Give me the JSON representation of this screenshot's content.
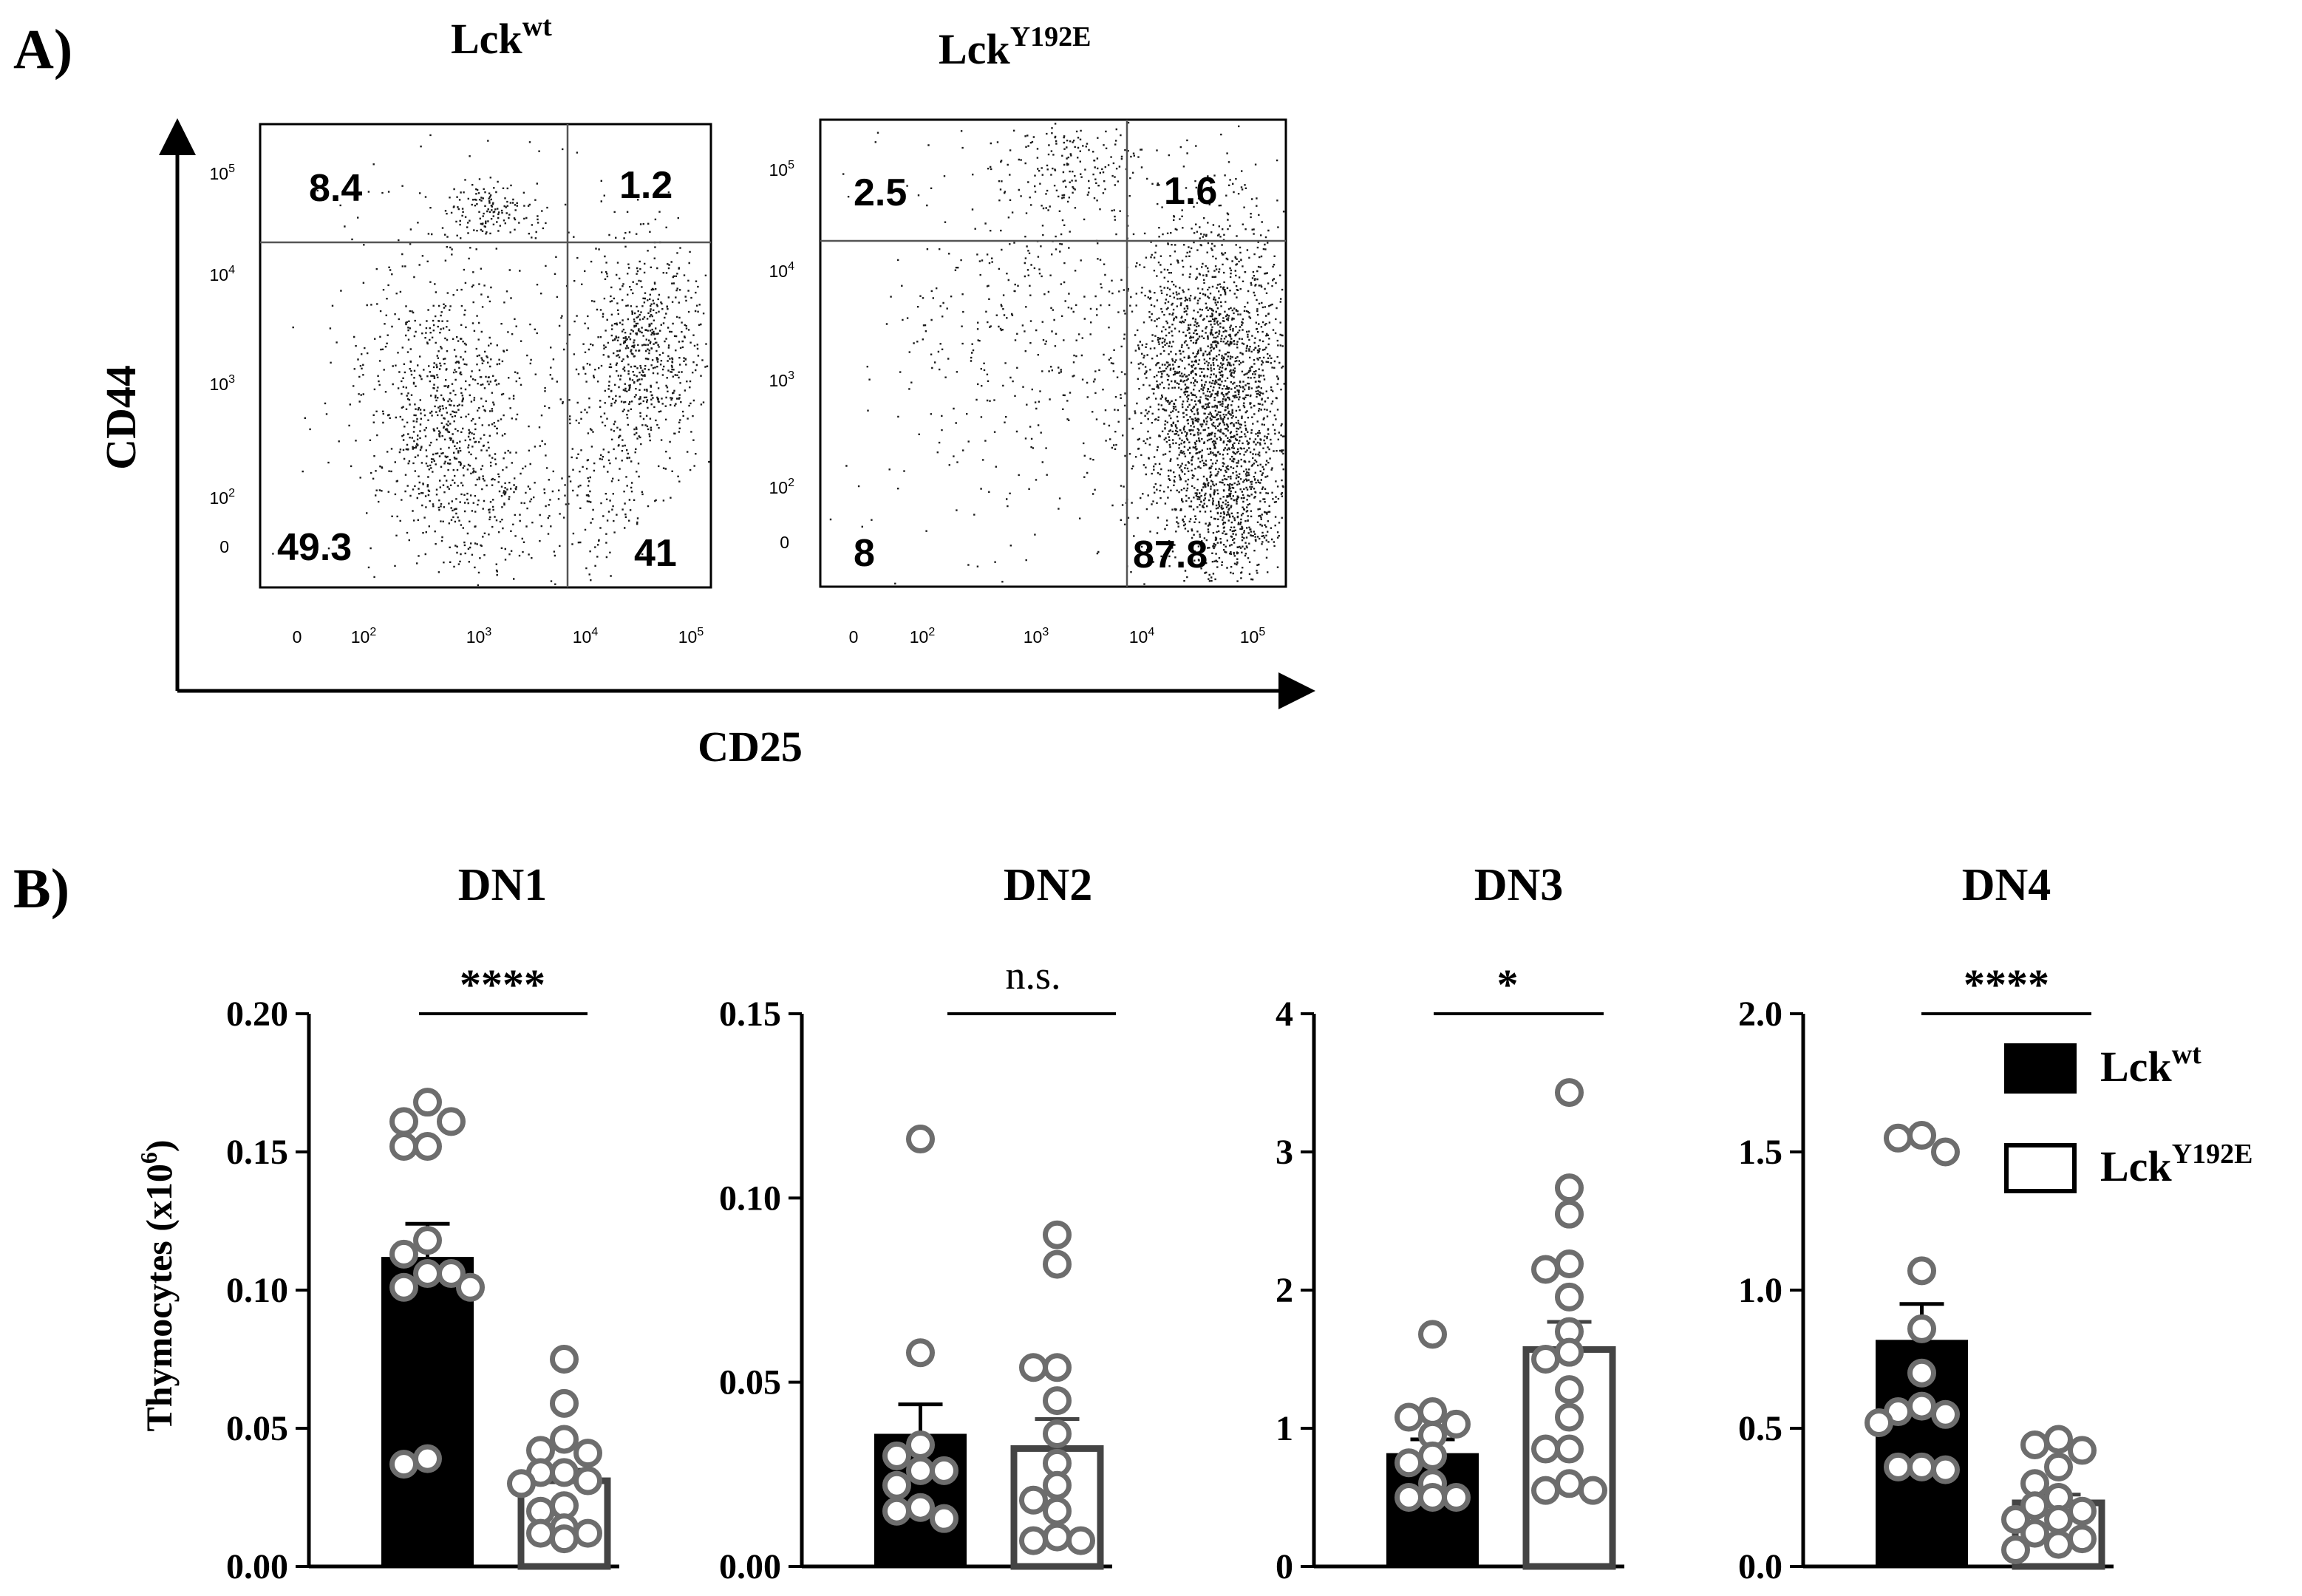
{
  "panel_a": {
    "label": "A)",
    "y_axis_label": "CD44",
    "x_axis_label": "CD25",
    "plots": [
      {
        "title_base": "Lck",
        "title_sup": "wt",
        "quadrants": {
          "top_left": "8.4",
          "top_right": "1.2",
          "bottom_left": "49.3",
          "bottom_right": "41"
        }
      },
      {
        "title_base": "Lck",
        "title_sup": "Y192E",
        "quadrants": {
          "top_left": "2.5",
          "top_right": "1.6",
          "bottom_left": "8",
          "bottom_right": "87.8"
        }
      }
    ],
    "y_ticks": [
      {
        "base": "10",
        "exp": "5"
      },
      {
        "base": "10",
        "exp": "4"
      },
      {
        "base": "10",
        "exp": "3"
      },
      {
        "base": "10",
        "exp": "2"
      },
      {
        "base": "0",
        "exp": ""
      }
    ],
    "x_ticks": [
      {
        "base": "0",
        "exp": ""
      },
      {
        "base": "10",
        "exp": "2"
      },
      {
        "base": "10",
        "exp": "3"
      },
      {
        "base": "10",
        "exp": "4"
      },
      {
        "base": "10",
        "exp": "5"
      }
    ]
  },
  "panel_b": {
    "label": "B)",
    "y_axis_label_base": "Thymocytes (x10",
    "y_axis_label_sup": "6",
    "y_axis_label_end": ")",
    "legend": [
      {
        "base": "Lck",
        "sup": "wt",
        "color": "#000000"
      },
      {
        "base": "Lck",
        "sup": "Y192E",
        "color": "#ffffff"
      }
    ]
  },
  "chart_data": [
    {
      "type": "bar",
      "title": "DN1",
      "significance": "****",
      "ylim": [
        0,
        0.2
      ],
      "yticks": [
        "0.00",
        "0.05",
        "0.10",
        "0.15",
        "0.20"
      ],
      "series": [
        {
          "name": "Lck wt",
          "mean": 0.112,
          "sem": 0.012,
          "points": [
            0.168,
            0.161,
            0.161,
            0.152,
            0.152,
            0.118,
            0.113,
            0.106,
            0.106,
            0.101,
            0.101,
            0.039,
            0.037
          ]
        },
        {
          "name": "Lck Y192E",
          "mean": 0.031,
          "sem": 0.004,
          "points": [
            0.075,
            0.059,
            0.046,
            0.042,
            0.041,
            0.034,
            0.034,
            0.031,
            0.03,
            0.022,
            0.02,
            0.014,
            0.012,
            0.012,
            0.01
          ]
        }
      ]
    },
    {
      "type": "bar",
      "title": "DN2",
      "significance": "n.s.",
      "ylim": [
        0,
        0.15
      ],
      "yticks": [
        "0.00",
        "0.05",
        "0.10",
        "0.15"
      ],
      "series": [
        {
          "name": "Lck wt",
          "mean": 0.036,
          "sem": 0.008,
          "points": [
            0.116,
            0.058,
            0.033,
            0.03,
            0.026,
            0.026,
            0.022,
            0.016,
            0.015,
            0.013
          ]
        },
        {
          "name": "Lck Y192E",
          "mean": 0.032,
          "sem": 0.008,
          "points": [
            0.09,
            0.082,
            0.054,
            0.054,
            0.045,
            0.036,
            0.028,
            0.022,
            0.018,
            0.015,
            0.008,
            0.007,
            0.007
          ]
        }
      ]
    },
    {
      "type": "bar",
      "title": "DN3",
      "significance": "*",
      "ylim": [
        0,
        4
      ],
      "yticks": [
        "0",
        "1",
        "2",
        "3",
        "4"
      ],
      "series": [
        {
          "name": "Lck wt",
          "mean": 0.82,
          "sem": 0.1,
          "points": [
            1.68,
            1.12,
            1.08,
            1.03,
            0.95,
            0.8,
            0.75,
            0.6,
            0.5,
            0.5,
            0.5
          ]
        },
        {
          "name": "Lck Y192E",
          "mean": 1.57,
          "sem": 0.2,
          "points": [
            3.43,
            2.74,
            2.55,
            2.19,
            2.15,
            1.95,
            1.7,
            1.55,
            1.5,
            1.28,
            1.08,
            0.85,
            0.85,
            0.6,
            0.55,
            0.55
          ]
        }
      ]
    },
    {
      "type": "bar",
      "title": "DN4",
      "significance": "****",
      "ylim": [
        0,
        2
      ],
      "yticks": [
        "0.0",
        "0.5",
        "1.0",
        "1.5",
        "2.0"
      ],
      "series": [
        {
          "name": "Lck wt",
          "mean": 0.82,
          "sem": 0.13,
          "points": [
            1.56,
            1.55,
            1.5,
            1.07,
            0.86,
            0.7,
            0.58,
            0.56,
            0.55,
            0.52,
            0.36,
            0.36,
            0.35
          ]
        },
        {
          "name": "Lck Y192E",
          "mean": 0.23,
          "sem": 0.03,
          "points": [
            0.46,
            0.44,
            0.42,
            0.36,
            0.3,
            0.25,
            0.22,
            0.2,
            0.17,
            0.17,
            0.12,
            0.1,
            0.08,
            0.06
          ]
        }
      ]
    }
  ]
}
